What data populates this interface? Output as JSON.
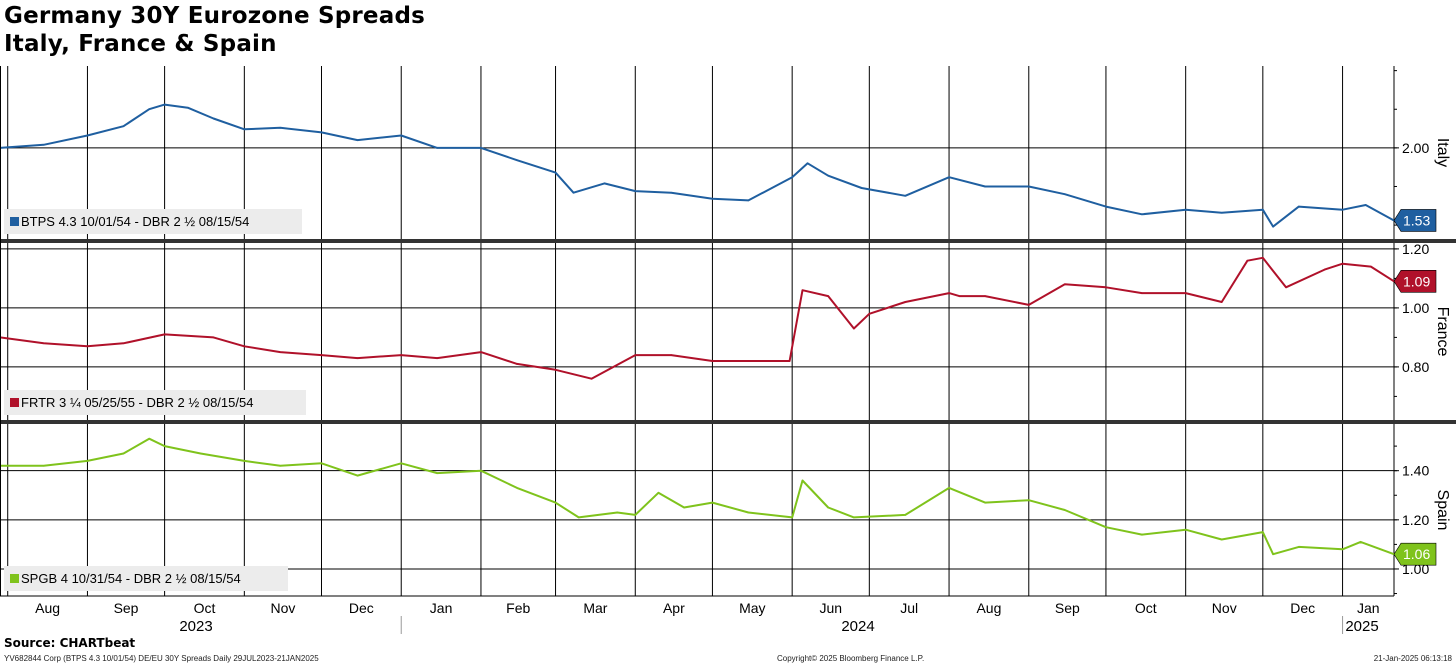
{
  "title_line1": "Germany 30Y Eurozone Spreads",
  "title_line2": "Italy, France & Spain",
  "source": "Source: CHARTbeat",
  "footer_left": "YV682844 Corp (BTPS 4.3 10/01/54) DE/EU 30Y Spreads  Daily 29JUL2023-21JAN2025",
  "footer_center": "Copyright© 2025 Bloomberg Finance L.P.",
  "footer_right": "21-Jan-2025 06:13:18",
  "chart_data": [
    {
      "type": "line",
      "axis_title": "Italy",
      "legend": "BTPS 4.3 10/01/54 - DBR 2 ½ 08/15/54",
      "color": "#1f5fa0",
      "last_value": "1.53",
      "yticks": [
        2.0
      ],
      "ylim": [
        1.41,
        2.53
      ],
      "x": [
        "2023-07-29",
        "2023-08-15",
        "2023-09-01",
        "2023-09-15",
        "2023-09-25",
        "2023-10-01",
        "2023-10-10",
        "2023-10-20",
        "2023-11-01",
        "2023-11-15",
        "2023-12-01",
        "2023-12-15",
        "2024-01-01",
        "2024-01-15",
        "2024-02-01",
        "2024-02-15",
        "2024-03-01",
        "2024-03-08",
        "2024-03-20",
        "2024-04-01",
        "2024-04-15",
        "2024-05-01",
        "2024-05-15",
        "2024-06-01",
        "2024-06-07",
        "2024-06-15",
        "2024-06-28",
        "2024-07-15",
        "2024-08-01",
        "2024-08-15",
        "2024-09-01",
        "2024-09-15",
        "2024-10-01",
        "2024-10-15",
        "2024-11-01",
        "2024-11-15",
        "2024-12-01",
        "2024-12-05",
        "2024-12-15",
        "2025-01-01",
        "2025-01-10",
        "2025-01-21"
      ],
      "values": [
        2.0,
        2.02,
        2.08,
        2.14,
        2.25,
        2.28,
        2.26,
        2.19,
        2.12,
        2.13,
        2.1,
        2.05,
        2.08,
        2.0,
        2.0,
        1.92,
        1.84,
        1.71,
        1.77,
        1.72,
        1.71,
        1.67,
        1.66,
        1.81,
        1.9,
        1.82,
        1.74,
        1.69,
        1.81,
        1.75,
        1.75,
        1.7,
        1.62,
        1.57,
        1.6,
        1.58,
        1.6,
        1.49,
        1.62,
        1.6,
        1.63,
        1.53
      ]
    },
    {
      "type": "line",
      "axis_title": "France",
      "legend": "FRTR 3 ¼ 05/25/55 - DBR 2 ½ 08/15/54",
      "color": "#b0112a",
      "last_value": "1.09",
      "yticks": [
        0.8,
        1.0,
        1.2
      ],
      "ylim": [
        0.62,
        1.22
      ],
      "x": [
        "2023-07-29",
        "2023-08-15",
        "2023-09-01",
        "2023-09-15",
        "2023-10-01",
        "2023-10-20",
        "2023-11-01",
        "2023-11-15",
        "2023-12-01",
        "2023-12-15",
        "2024-01-01",
        "2024-01-15",
        "2024-02-01",
        "2024-02-15",
        "2024-03-01",
        "2024-03-15",
        "2024-04-01",
        "2024-04-15",
        "2024-05-01",
        "2024-05-15",
        "2024-05-31",
        "2024-06-05",
        "2024-06-15",
        "2024-06-25",
        "2024-07-01",
        "2024-07-15",
        "2024-08-01",
        "2024-08-05",
        "2024-08-15",
        "2024-09-01",
        "2024-09-15",
        "2024-10-01",
        "2024-10-15",
        "2024-11-01",
        "2024-11-15",
        "2024-11-25",
        "2024-12-01",
        "2024-12-10",
        "2024-12-25",
        "2025-01-01",
        "2025-01-12",
        "2025-01-21"
      ],
      "values": [
        0.9,
        0.88,
        0.87,
        0.88,
        0.91,
        0.9,
        0.87,
        0.85,
        0.84,
        0.83,
        0.84,
        0.83,
        0.85,
        0.81,
        0.79,
        0.76,
        0.84,
        0.84,
        0.82,
        0.82,
        0.82,
        1.06,
        1.04,
        0.93,
        0.98,
        1.02,
        1.05,
        1.04,
        1.04,
        1.01,
        1.08,
        1.07,
        1.05,
        1.05,
        1.02,
        1.16,
        1.17,
        1.07,
        1.13,
        1.15,
        1.14,
        1.09
      ]
    },
    {
      "type": "line",
      "axis_title": "Spain",
      "legend": "SPGB 4 10/31/54 - DBR 2 ½ 08/15/54",
      "color": "#7fc31c",
      "last_value": "1.06",
      "yticks": [
        1.0,
        1.2,
        1.4
      ],
      "ylim": [
        0.89,
        1.59
      ],
      "x": [
        "2023-07-29",
        "2023-08-15",
        "2023-09-01",
        "2023-09-15",
        "2023-09-25",
        "2023-10-01",
        "2023-10-15",
        "2023-11-01",
        "2023-11-15",
        "2023-12-01",
        "2023-12-15",
        "2024-01-01",
        "2024-01-15",
        "2024-02-01",
        "2024-02-15",
        "2024-03-01",
        "2024-03-10",
        "2024-03-25",
        "2024-04-01",
        "2024-04-10",
        "2024-04-20",
        "2024-05-01",
        "2024-05-15",
        "2024-06-01",
        "2024-06-05",
        "2024-06-15",
        "2024-06-25",
        "2024-07-15",
        "2024-08-01",
        "2024-08-15",
        "2024-09-01",
        "2024-09-15",
        "2024-10-01",
        "2024-10-15",
        "2024-11-01",
        "2024-11-15",
        "2024-12-01",
        "2024-12-05",
        "2024-12-15",
        "2025-01-01",
        "2025-01-08",
        "2025-01-21"
      ],
      "values": [
        1.42,
        1.42,
        1.44,
        1.47,
        1.53,
        1.5,
        1.47,
        1.44,
        1.42,
        1.43,
        1.38,
        1.43,
        1.39,
        1.4,
        1.33,
        1.27,
        1.21,
        1.23,
        1.22,
        1.31,
        1.25,
        1.27,
        1.23,
        1.21,
        1.36,
        1.25,
        1.21,
        1.22,
        1.33,
        1.27,
        1.28,
        1.24,
        1.17,
        1.14,
        1.16,
        1.12,
        1.15,
        1.06,
        1.09,
        1.08,
        1.11,
        1.06
      ]
    }
  ],
  "x_axis": {
    "months": [
      "Aug",
      "Sep",
      "Oct",
      "Nov",
      "Dec",
      "Jan",
      "Feb",
      "Mar",
      "Apr",
      "May",
      "Jun",
      "Jul",
      "Aug",
      "Sep",
      "Oct",
      "Nov",
      "Dec",
      "Jan"
    ],
    "years": [
      "2023",
      "2024",
      "2025"
    ]
  }
}
